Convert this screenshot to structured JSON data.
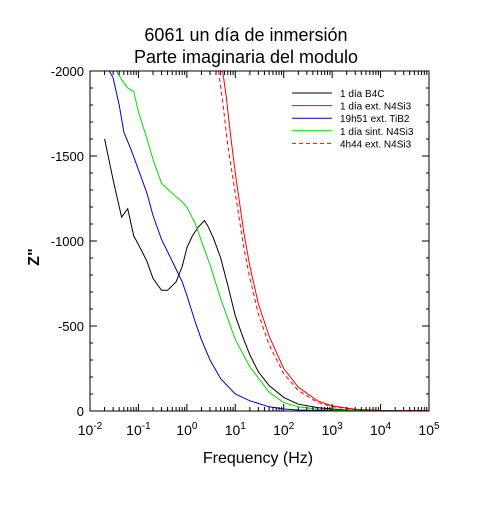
{
  "chart_data": {
    "type": "line",
    "title": "6061 un día de inmersión",
    "subtitle": "Parte imaginaria del modulo",
    "xlabel": "Frequency (Hz)",
    "ylabel": "Z\"",
    "x_scale": "log",
    "xlim": [
      0.01,
      100000
    ],
    "ylim": [
      0,
      -2000
    ],
    "grid": false,
    "legend_position": "top-right",
    "x_ticks": [
      {
        "base": "10",
        "exp": "-2"
      },
      {
        "base": "10",
        "exp": "-1"
      },
      {
        "base": "10",
        "exp": "0"
      },
      {
        "base": "10",
        "exp": "1"
      },
      {
        "base": "10",
        "exp": "2"
      },
      {
        "base": "10",
        "exp": "3"
      },
      {
        "base": "10",
        "exp": "4"
      },
      {
        "base": "10",
        "exp": "5"
      }
    ],
    "y_ticks": [
      {
        "value": -2000,
        "label": "-2000"
      },
      {
        "value": -1500,
        "label": "-1500"
      },
      {
        "value": -1000,
        "label": "-1000"
      },
      {
        "value": -500,
        "label": "-500"
      },
      {
        "value": 0,
        "label": "0"
      }
    ],
    "series": [
      {
        "name": "1 día B4C",
        "color": "#000000",
        "dash": "solid",
        "x": [
          0.02,
          0.03,
          0.045,
          0.06,
          0.08,
          0.1,
          0.15,
          0.2,
          0.3,
          0.4,
          0.6,
          0.8,
          1.0,
          1.3,
          1.7,
          2.3,
          2.7,
          3.5,
          5,
          7,
          10,
          15,
          20,
          30,
          50,
          100,
          200,
          500,
          1000,
          2000,
          5000,
          10000,
          100000
        ],
        "y": [
          -1600,
          -1360,
          -1140,
          -1190,
          -1030,
          -980,
          -880,
          -780,
          -710,
          -710,
          -760,
          -850,
          -960,
          -1030,
          -1080,
          -1120,
          -1090,
          -1020,
          -900,
          -740,
          -560,
          -420,
          -330,
          -230,
          -150,
          -80,
          -40,
          -20,
          -12,
          -6,
          -3,
          -2,
          -1
        ]
      },
      {
        "name": "1 día ext. N4Si3",
        "color": "#ff0000",
        "dash": "solid",
        "x": [
          5.5,
          6.5,
          8,
          10,
          15,
          20,
          30,
          50,
          100,
          200,
          500,
          1000,
          3000,
          10000,
          100000
        ],
        "y": [
          -2000,
          -1850,
          -1620,
          -1400,
          -1050,
          -850,
          -630,
          -440,
          -250,
          -140,
          -60,
          -30,
          -10,
          -3,
          -1
        ]
      },
      {
        "name": "19h51 ext. TiB2",
        "color": "#0000cc",
        "dash": "solid",
        "x": [
          0.025,
          0.03,
          0.04,
          0.05,
          0.07,
          0.1,
          0.15,
          0.2,
          0.3,
          0.5,
          0.8,
          1.0,
          1.5,
          2.0,
          3.0,
          5,
          10,
          20,
          50,
          100,
          200,
          500,
          1000,
          10000,
          100000
        ],
        "y": [
          -2000,
          -1960,
          -1800,
          -1640,
          -1540,
          -1420,
          -1280,
          -1150,
          -1010,
          -880,
          -760,
          -680,
          -520,
          -420,
          -300,
          -190,
          -100,
          -60,
          -25,
          -12,
          -6,
          -3,
          -2,
          -1,
          0
        ]
      },
      {
        "name": "1 día sint. N4Si3",
        "color": "#00dd00",
        "dash": "solid",
        "x": [
          0.025,
          0.035,
          0.045,
          0.06,
          0.08,
          0.1,
          0.15,
          0.2,
          0.3,
          0.5,
          0.8,
          1.0,
          1.5,
          2.0,
          3.0,
          5,
          10,
          20,
          50,
          100,
          200,
          500,
          1000,
          10000,
          100000
        ],
        "y": [
          -2000,
          -2000,
          -1950,
          -1900,
          -1880,
          -1760,
          -1600,
          -1480,
          -1340,
          -1280,
          -1230,
          -1200,
          -1100,
          -1000,
          -860,
          -660,
          -420,
          -260,
          -110,
          -50,
          -25,
          -10,
          -5,
          -2,
          0
        ]
      },
      {
        "name": "4h44 ext. N4Si3",
        "color": "#ff0000",
        "dash": "dashed",
        "x": [
          4.5,
          5.5,
          7,
          10,
          15,
          20,
          30,
          50,
          100,
          200,
          500,
          1000,
          3000,
          10000,
          100000
        ],
        "y": [
          -2000,
          -1820,
          -1560,
          -1280,
          -960,
          -780,
          -570,
          -390,
          -220,
          -120,
          -50,
          -25,
          -8,
          -2,
          -1
        ]
      }
    ]
  }
}
